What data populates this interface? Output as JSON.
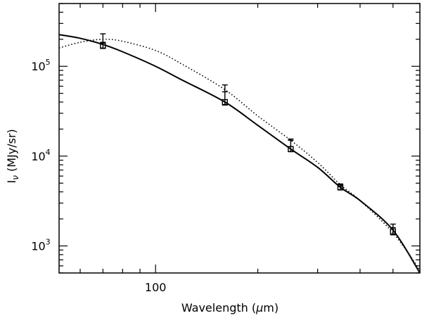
{
  "chart_data": {
    "type": "scatter",
    "xlabel": "Wavelength (μm)",
    "ylabel": "Iν (MJy/sr)",
    "ylabel_main": "I",
    "ylabel_sub": "ν",
    "ylabel_unit": " (MJy/sr)",
    "xlabel_main": "Wavelength (",
    "xlabel_mu": "μ",
    "xlabel_tail": "m)",
    "x_scale": "log",
    "y_scale": "log",
    "xlim": [
      52,
      600
    ],
    "ylim": [
      500,
      500000
    ],
    "x_ticks_major": [
      {
        "value": 100,
        "label": "100"
      }
    ],
    "y_ticks_major": [
      {
        "value": 1000,
        "base": "10",
        "exp": "3"
      },
      {
        "value": 10000,
        "base": "10",
        "exp": "4"
      },
      {
        "value": 100000,
        "base": "10",
        "exp": "5"
      }
    ],
    "grid": false,
    "legend": "none",
    "series": [
      {
        "style": "points-errorbars",
        "marker": "open-square",
        "x": [
          70,
          160,
          250,
          350,
          500
        ],
        "y": [
          170000,
          40000,
          12000,
          4500,
          1450
        ],
        "err_high": [
          230000,
          62000,
          15500,
          4900,
          1750
        ],
        "err_low": [
          158000,
          37000,
          11200,
          4200,
          1330
        ],
        "y_alt": [
          185000,
          52000,
          15000,
          4600,
          1600
        ]
      },
      {
        "style": "solid-line",
        "x": [
          52,
          60,
          70,
          80,
          100,
          120,
          160,
          200,
          250,
          300,
          350,
          400,
          500,
          600
        ],
        "y": [
          225000,
          205000,
          175000,
          145000,
          100000,
          70000,
          40000,
          22000,
          12000,
          7500,
          4500,
          3200,
          1500,
          500
        ]
      },
      {
        "style": "dotted-line",
        "x": [
          52,
          60,
          70,
          80,
          100,
          120,
          160,
          200,
          250,
          300,
          350,
          400,
          500,
          600
        ],
        "y": [
          160000,
          185000,
          200000,
          190000,
          150000,
          105000,
          55000,
          28000,
          15000,
          8500,
          4800,
          3200,
          1400,
          540
        ]
      }
    ],
    "colors": {
      "axes": "#000000",
      "line": "#000000",
      "background": "#ffffff"
    }
  }
}
